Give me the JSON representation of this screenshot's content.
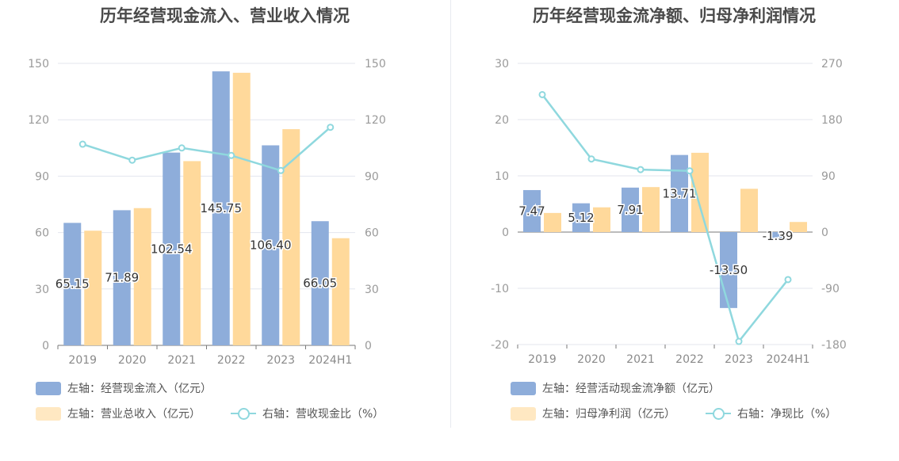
{
  "colors": {
    "bar1": "#8eadda",
    "bar2": "#ffd99b",
    "line": "#8fd8de"
  },
  "chart_data": [
    {
      "type": "bar",
      "title": "历年经营现金流入、营业收入情况",
      "categories": [
        "2019",
        "2020",
        "2021",
        "2022",
        "2023",
        "2024H1"
      ],
      "left_axis": {
        "min": 0,
        "max": 150,
        "ticks": [
          "0",
          "30",
          "60",
          "90",
          "120",
          "150"
        ]
      },
      "right_axis": {
        "min": 0,
        "max": 150,
        "ticks": [
          "0",
          "30",
          "60",
          "90",
          "120",
          "150"
        ]
      },
      "series": [
        {
          "name": "左轴：经营现金流入（亿元）",
          "axis": "left",
          "kind": "bar",
          "values": [
            65.15,
            71.89,
            102.54,
            145.75,
            106.4,
            66.05
          ],
          "labels": [
            "65.15",
            "71.89",
            "102.54",
            "145.75",
            "106.40",
            "66.05"
          ]
        },
        {
          "name": "左轴：营业总收入（亿元）",
          "axis": "left",
          "kind": "bar",
          "values": [
            61,
            73,
            98,
            145,
            115,
            57
          ]
        },
        {
          "name": "右轴：营收现金比（%）",
          "axis": "right",
          "kind": "line",
          "values": [
            107,
            98.5,
            105,
            101,
            93,
            116
          ]
        }
      ]
    },
    {
      "type": "bar",
      "title": "历年经营现金流净额、归母净利润情况",
      "categories": [
        "2019",
        "2020",
        "2021",
        "2022",
        "2023",
        "2024H1"
      ],
      "left_axis": {
        "min": -20,
        "max": 30,
        "ticks": [
          "-20",
          "-10",
          "0",
          "10",
          "20",
          "30"
        ]
      },
      "right_axis": {
        "min": -180,
        "max": 270,
        "ticks": [
          "-180",
          "-90",
          "0",
          "90",
          "180",
          "270"
        ]
      },
      "series": [
        {
          "name": "左轴：经营活动现金流净额（亿元）",
          "axis": "left",
          "kind": "bar",
          "values": [
            7.47,
            5.12,
            7.91,
            13.71,
            -13.5,
            -1.39
          ],
          "labels": [
            "7.47",
            "5.12",
            "7.91",
            "13.71",
            "-13.50",
            "-1.39"
          ]
        },
        {
          "name": "左轴：归母净利润（亿元）",
          "axis": "left",
          "kind": "bar",
          "values": [
            3.4,
            4.4,
            8.0,
            14.1,
            7.7,
            1.8
          ]
        },
        {
          "name": "右轴：净现比（%）",
          "axis": "right",
          "kind": "line",
          "values": [
            220,
            117,
            100,
            98,
            -175,
            -76
          ]
        }
      ]
    }
  ]
}
